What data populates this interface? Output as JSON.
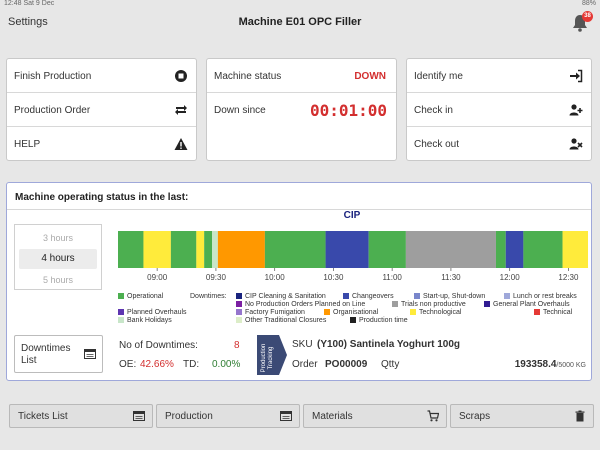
{
  "statusbar": {
    "time": "12:48",
    "date": "Sat 9 Dec",
    "right": "88%"
  },
  "header": {
    "settings_label": "Settings",
    "title": "Machine E01 OPC Filler",
    "notification_count": "38"
  },
  "left_panel": {
    "items": [
      {
        "label": "Finish Production",
        "icon": "stop-icon"
      },
      {
        "label": "Production Order",
        "icon": "repeat-icon"
      },
      {
        "label": "HELP",
        "icon": "warning-icon"
      }
    ]
  },
  "middle_panel": {
    "machine_status_label": "Machine status",
    "machine_status_value": "DOWN",
    "down_since_label": "Down since",
    "down_since_value": "00:01:00"
  },
  "right_panel": {
    "items": [
      {
        "label": "Identify me",
        "icon": "sign-in-icon"
      },
      {
        "label": "Check in",
        "icon": "user-plus-icon"
      },
      {
        "label": "Check out",
        "icon": "user-remove-icon"
      }
    ]
  },
  "status_section": {
    "title": "Machine operating status in the last:",
    "hours_options": [
      "3 hours",
      "4 hours",
      "5 hours"
    ],
    "selected_hours": "4 hours"
  },
  "chart_data": {
    "type": "bar",
    "title": "CIP",
    "x_ticks": [
      "09:00",
      "09:30",
      "10:00",
      "10:30",
      "11:00",
      "11:30",
      "12:00",
      "12:30"
    ],
    "segments": [
      {
        "start": "08:40",
        "end": "08:53",
        "state": "Operational"
      },
      {
        "start": "08:53",
        "end": "09:07",
        "state": "Technological"
      },
      {
        "start": "09:07",
        "end": "09:20",
        "state": "Operational"
      },
      {
        "start": "09:20",
        "end": "09:24",
        "state": "Technological"
      },
      {
        "start": "09:24",
        "end": "09:28",
        "state": "Operational"
      },
      {
        "start": "09:28",
        "end": "09:31",
        "state": "Bank Holidays"
      },
      {
        "start": "09:31",
        "end": "09:55",
        "state": "Organisational"
      },
      {
        "start": "09:55",
        "end": "10:26",
        "state": "Operational"
      },
      {
        "start": "10:26",
        "end": "10:48",
        "state": "Changeovers"
      },
      {
        "start": "10:48",
        "end": "11:07",
        "state": "Operational"
      },
      {
        "start": "11:07",
        "end": "11:53",
        "state": "Trials non productive"
      },
      {
        "start": "11:53",
        "end": "11:58",
        "state": "Operational"
      },
      {
        "start": "11:58",
        "end": "12:07",
        "state": "Changeovers"
      },
      {
        "start": "12:07",
        "end": "12:27",
        "state": "Operational"
      },
      {
        "start": "12:27",
        "end": "12:40",
        "state": "Technological"
      }
    ],
    "legend": [
      {
        "name": "Operational",
        "color": "#4caf50"
      },
      {
        "name": "CIP Cleaning & Sanitation",
        "color": "#1a237e"
      },
      {
        "name": "Changeovers",
        "color": "#3949ab"
      },
      {
        "name": "Start-up, Shut-down",
        "color": "#7986cb"
      },
      {
        "name": "Lunch or rest breaks",
        "color": "#9fa8da"
      },
      {
        "name": "No Production Orders Planned on Line",
        "color": "#7b1fa2"
      },
      {
        "name": "Trials non productive",
        "color": "#9e9e9e"
      },
      {
        "name": "General Plant Overhauls",
        "color": "#311b92"
      },
      {
        "name": "Planned Overhauls",
        "color": "#5e35b1"
      },
      {
        "name": "Factory Fumigation",
        "color": "#9575cd"
      },
      {
        "name": "Organisational",
        "color": "#ff9800"
      },
      {
        "name": "Technological",
        "color": "#ffeb3b"
      },
      {
        "name": "Technical",
        "color": "#e53935"
      },
      {
        "name": "Bank Holidays",
        "color": "#c8e6c9"
      },
      {
        "name": "Other Traditional Closures",
        "color": "#dcedc8"
      },
      {
        "name": "Production time",
        "color": "#212121"
      }
    ],
    "downtimes_label": "Downtimes:"
  },
  "downtimes_button": {
    "label": "Downtimes List"
  },
  "stats": {
    "no_of_downtimes_label": "No of Downtimes:",
    "no_of_downtimes_value": "8",
    "oe_label": "OE:",
    "oe_value": "42.66%",
    "td_label": "TD:",
    "td_value": "0.00%"
  },
  "tracking": {
    "tab_label": "Production Tracking",
    "sku_label": "SKU",
    "sku_value": "(Y100) Santinela Yoghurt 100g",
    "order_label": "Order",
    "order_value": "PO00009",
    "qtty_label": "Qtty",
    "qtty_value": "193358.4",
    "qtty_target": "/5000 KG"
  },
  "bottom_buttons": [
    {
      "label": "Tickets List",
      "icon": "list-icon"
    },
    {
      "label": "Production",
      "icon": "list-icon"
    },
    {
      "label": "Materials",
      "icon": "cart-icon"
    },
    {
      "label": "Scraps",
      "icon": "trash-icon"
    }
  ]
}
